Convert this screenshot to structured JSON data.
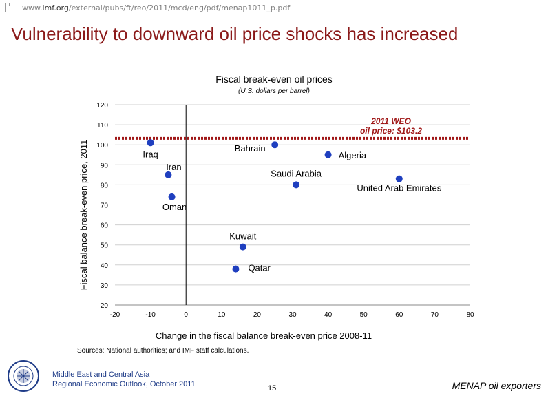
{
  "browser": {
    "url_prefix": "www.",
    "url_domain": "imf.org",
    "url_path": "/external/pubs/ft/reo/2011/mcd/eng/pdf/menap1011_p.pdf"
  },
  "slide": {
    "title": "Vulnerability to downward oil price shocks has increased"
  },
  "chart_data": {
    "type": "scatter",
    "title": "Fiscal break-even oil prices",
    "subtitle": "(U.S. dollars per barrel)",
    "xlabel": "Change in the fiscal balance break-even price 2008-11",
    "ylabel": "Fiscal balance break-even price, 2011",
    "xlim": [
      -20,
      80
    ],
    "ylim": [
      20,
      120
    ],
    "xticks": [
      -20,
      -10,
      0,
      10,
      20,
      30,
      40,
      50,
      60,
      70,
      80
    ],
    "yticks": [
      20,
      30,
      40,
      50,
      60,
      70,
      80,
      90,
      100,
      110,
      120
    ],
    "grid": true,
    "points": [
      {
        "label": "Iraq",
        "x": -10,
        "y": 101
      },
      {
        "label": "Iran",
        "x": -5,
        "y": 85
      },
      {
        "label": "Oman",
        "x": -4,
        "y": 74
      },
      {
        "label": "Bahrain",
        "x": 25,
        "y": 100
      },
      {
        "label": "Algeria",
        "x": 40,
        "y": 95
      },
      {
        "label": "Saudi Arabia",
        "x": 31,
        "y": 80
      },
      {
        "label": "United Arab Emirates",
        "x": 60,
        "y": 83
      },
      {
        "label": "Kuwait",
        "x": 16,
        "y": 49
      },
      {
        "label": "Qatar",
        "x": 14,
        "y": 38
      }
    ],
    "reference_line": {
      "y": 103.2,
      "label_line1": "2011 WEO",
      "label_line2": "oil price: $103.2",
      "color": "#a01818"
    },
    "point_color": "#1f3fbf",
    "source": "Sources: National authorities; and IMF staff calculations."
  },
  "footer": {
    "line1": "Middle East and Central Asia",
    "line2": "Regional Economic Outlook, October 2011",
    "page_number": "15",
    "section": "MENAP oil exporters",
    "logo": "INTERNATIONAL MONETARY FUND"
  }
}
